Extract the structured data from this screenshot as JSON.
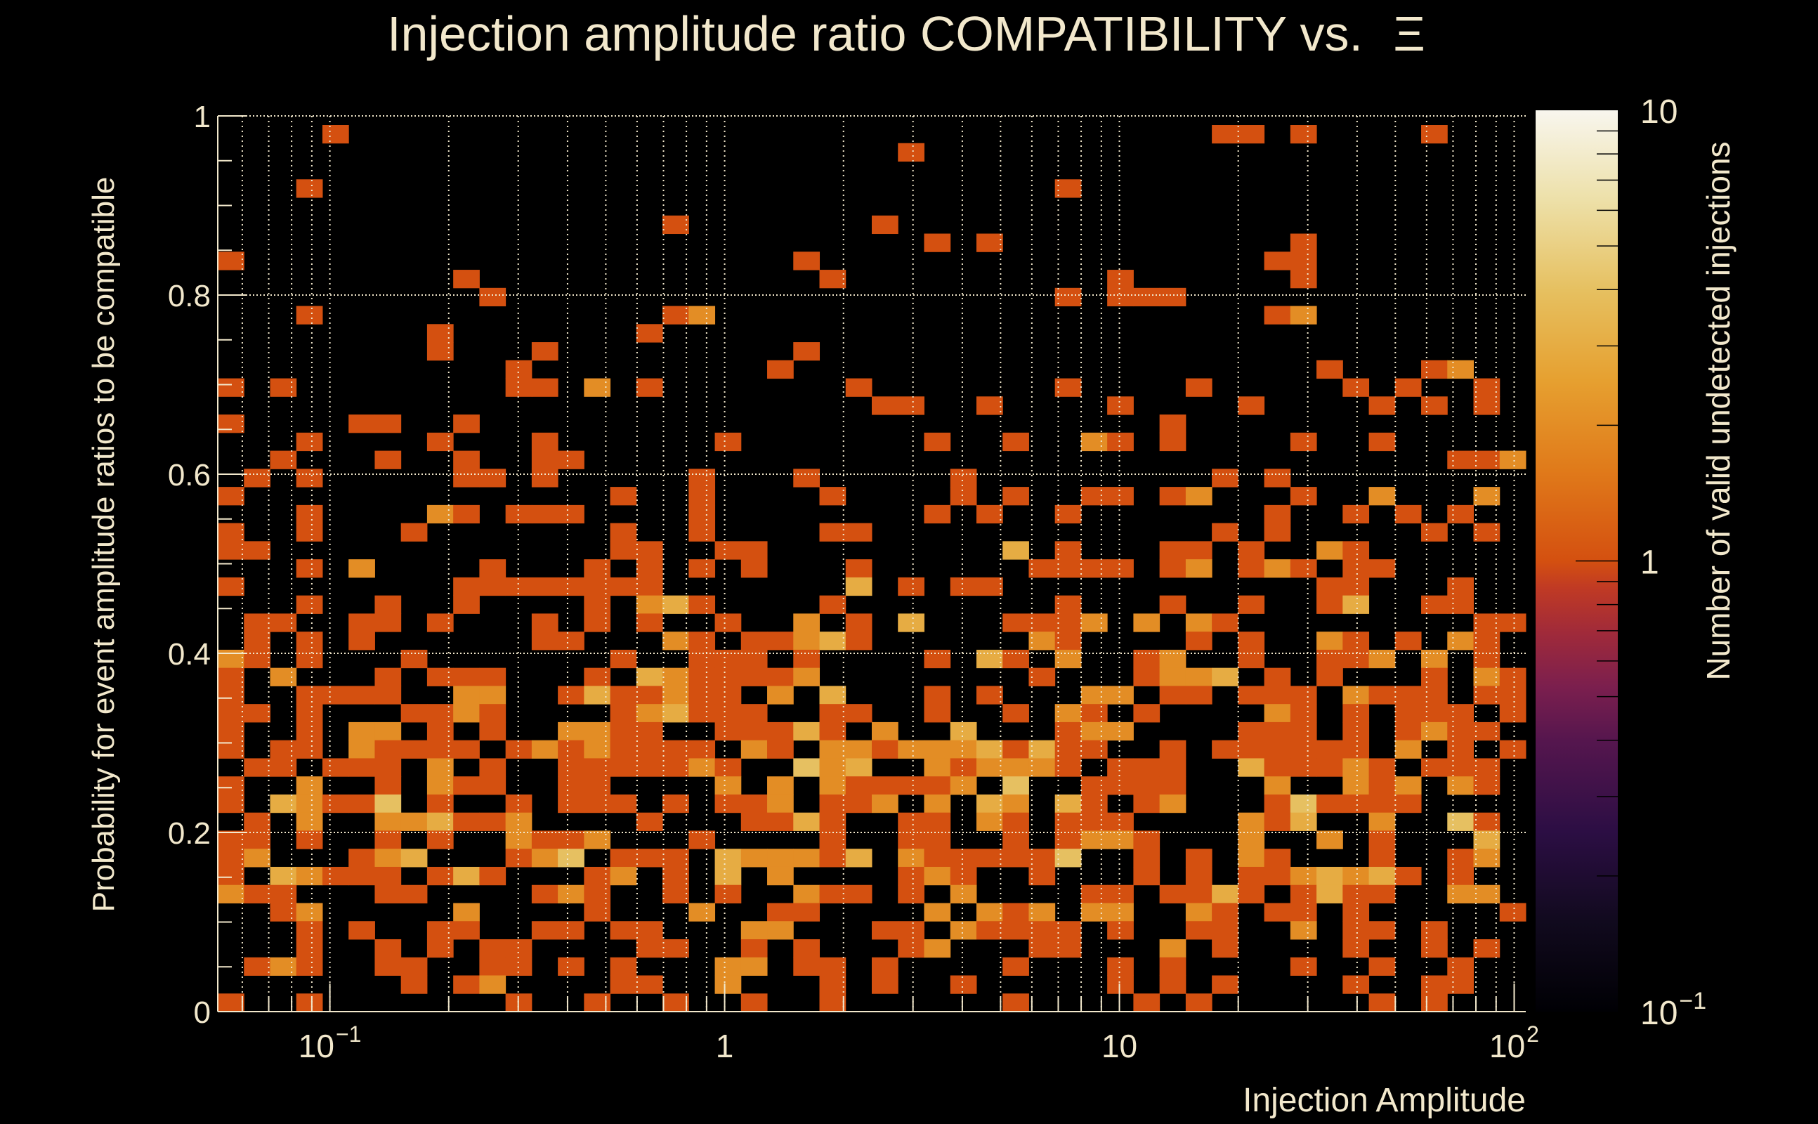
{
  "chart_data": {
    "type": "heatmap",
    "title": "Injection amplitude ratio COMPATIBILITY vs.",
    "title_symbol": "Ξ",
    "xlabel": "Injection Amplitude",
    "ylabel": "Probability for event amplitude ratios to be compatible",
    "zlabel": "Number of valid undetected injections",
    "x_scale": "log",
    "x_range": [
      0.052,
      107
    ],
    "y_range": [
      0,
      1
    ],
    "z_scale": "log",
    "z_range": [
      0.1,
      10
    ],
    "grid": true,
    "x_bins": 50,
    "y_bin_width": 0.0202,
    "xticks": [
      {
        "value": 0.1,
        "base": "10",
        "exp": "−1"
      },
      {
        "value": 1,
        "base": "1",
        "exp": ""
      },
      {
        "value": 10,
        "base": "10",
        "exp": ""
      },
      {
        "value": 100,
        "base": "10",
        "exp": "2"
      }
    ],
    "yticks": [
      {
        "value": 0,
        "label": "0"
      },
      {
        "value": 0.2,
        "label": "0.2"
      },
      {
        "value": 0.4,
        "label": "0.4"
      },
      {
        "value": 0.6,
        "label": "0.6"
      },
      {
        "value": 0.8,
        "label": "0.8"
      },
      {
        "value": 1,
        "label": "1"
      }
    ],
    "zticks": [
      {
        "value": 10,
        "base": "10",
        "exp": ""
      },
      {
        "value": 1,
        "base": "1",
        "exp": ""
      },
      {
        "value": 0.1,
        "base": "10",
        "exp": "−1"
      }
    ],
    "colorscale": [
      [
        0,
        "#000004"
      ],
      [
        0.1,
        "#110a1e"
      ],
      [
        0.2,
        "#2c0e44"
      ],
      [
        0.3,
        "#55164e"
      ],
      [
        0.36,
        "#7b1f4e"
      ],
      [
        0.42,
        "#a02a3a"
      ],
      [
        0.47,
        "#c03a24"
      ],
      [
        0.5,
        "#d45010"
      ],
      [
        0.6,
        "#e07a1a"
      ],
      [
        0.7,
        "#e6a030"
      ],
      [
        0.8,
        "#e6c060"
      ],
      [
        0.9,
        "#ede0a8"
      ],
      [
        1,
        "#f8f6ee"
      ]
    ],
    "counts_rows_top_to_bottom": [
      "00000000000000000000000000000000000000000000000000",
      "00001000000000000000000000000000000000110100001000",
      "00000000000000000000000000100000000000000000000000",
      "00000000000000000000000000000000000000000000000000",
      "00010000000000000000000000000000100000000000000000",
      "00000000000000000000000000000000000000000000000000",
      "00000000000000000100000001000000000000000000000000",
      "00000000000000000000000000010100000000000100000000",
      "10000000000000000000001000000000000000001100000000",
      "00000000010000000000000100000000001000000100000000",
      "00000000001000000000000000000000101110000000000000",
      "00010000000000000120000000000000000000001200000000",
      "00000000100000001000000000000000000000000000000000",
      "00000000100010000000001000000000000000000000000000",
      "00000000000100000000010000000000000000000010001200",
      "10100000000110201000000010000000100001000001010010",
      "00000000000000000000000001100100001000010000101010",
      "10000110010000000000000000000000000010000000000000",
      "00010000100010000001000000010010021010000100100000",
      "00100010010011000000000000000000000000000000000112",
      "01010000011010000010001000001000000000101000000000",
      "10000000000000010010000100001010011012000100200020",
      "00010000210111000010000000010100100000001001010100",
      "10010001000000010010000110000000000000101000001010",
      "11000000000000011001100000000030100011010021000000",
      "00010200001000101010100010000001111012012101100000",
      "10000000011111111000000030101100000000000011000100",
      "00010010010000102310000100000000100010010013001100",
      "01100110100010101001002010300011120202100000000011",
      "01010100000011000210112310000002100001010021010210",
      "21010001000000010011101000010310200120010011202010",
      "10200010111000103211112000000001000122301010001021",
      "10011110022001311211020300010100022011011102111011",
      "11010001121000012311100110010010210100002101011101",
      "10010220101002211001113102003000122000011101012110",
      "10110211110121211110210221222313110010111111020101",
      "01101110201001111121004230021222101110031112101110",
      "10020010211001100002020211112040011110002002120210",
      "10321140100101110101120112020320310120001411110000",
      "01020022311200001000113100110210111000021300200410",
      "11010010100211200010000100110010122100020020100030",
      "12000123000124011103222130211111400101021000100120",
      "10321110131000120103020000121001000101011232310100",
      "21100011000012100101002110102000011011310131100220",
      "00120000020000100020011000020212022002101101000001",
      "00010100110011011000220001102111101001100201101000",
      "00010010101100001100101000120001100020100001001010",
      "01210011001101010002201101000010001010000100100100",
      "00000001012000011002000101001000001010100001001100",
      "10010000000100100100100100000010000101000000101000"
    ]
  }
}
